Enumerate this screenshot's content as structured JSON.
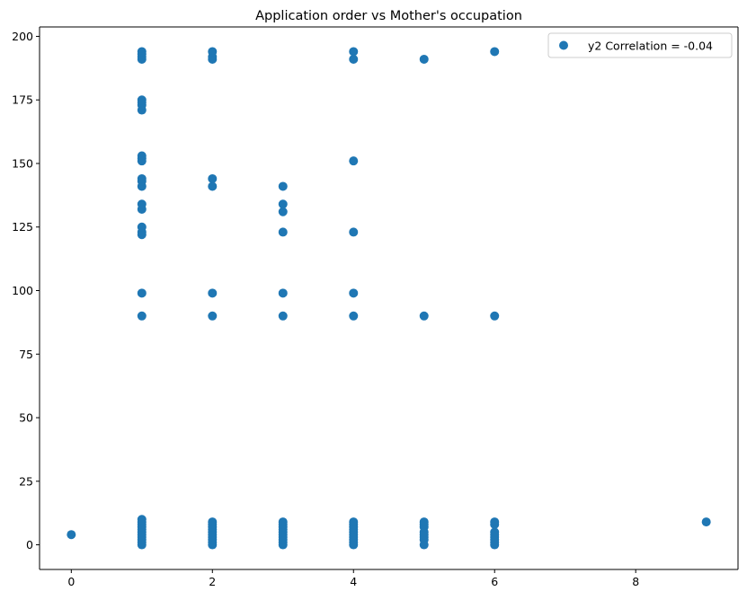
{
  "chart_data": {
    "type": "scatter",
    "title": "Application order vs Mother's occupation",
    "xlabel": "",
    "ylabel": "",
    "xlim": [
      -0.45,
      9.45
    ],
    "ylim": [
      -9.7,
      203.7
    ],
    "xticks": [
      0,
      2,
      4,
      6,
      8
    ],
    "yticks": [
      0,
      25,
      50,
      75,
      100,
      125,
      150,
      175,
      200
    ],
    "grid": false,
    "legend_position": "upper right",
    "series": [
      {
        "name": "y2 Correlation = -0.04",
        "color": "#1f77b4",
        "points": [
          [
            0,
            4
          ],
          [
            1,
            0
          ],
          [
            1,
            1
          ],
          [
            1,
            2
          ],
          [
            1,
            3
          ],
          [
            1,
            4
          ],
          [
            1,
            5
          ],
          [
            1,
            6
          ],
          [
            1,
            7
          ],
          [
            1,
            8
          ],
          [
            1,
            9
          ],
          [
            1,
            10
          ],
          [
            1,
            90
          ],
          [
            1,
            99
          ],
          [
            1,
            122
          ],
          [
            1,
            123
          ],
          [
            1,
            125
          ],
          [
            1,
            132
          ],
          [
            1,
            134
          ],
          [
            1,
            141
          ],
          [
            1,
            143
          ],
          [
            1,
            144
          ],
          [
            1,
            151
          ],
          [
            1,
            152
          ],
          [
            1,
            153
          ],
          [
            1,
            171
          ],
          [
            1,
            173
          ],
          [
            1,
            174
          ],
          [
            1,
            175
          ],
          [
            1,
            191
          ],
          [
            1,
            192
          ],
          [
            1,
            193
          ],
          [
            1,
            194
          ],
          [
            2,
            0
          ],
          [
            2,
            1
          ],
          [
            2,
            2
          ],
          [
            2,
            3
          ],
          [
            2,
            4
          ],
          [
            2,
            5
          ],
          [
            2,
            6
          ],
          [
            2,
            7
          ],
          [
            2,
            8
          ],
          [
            2,
            9
          ],
          [
            2,
            90
          ],
          [
            2,
            99
          ],
          [
            2,
            141
          ],
          [
            2,
            144
          ],
          [
            2,
            191
          ],
          [
            2,
            192
          ],
          [
            2,
            194
          ],
          [
            3,
            0
          ],
          [
            3,
            1
          ],
          [
            3,
            2
          ],
          [
            3,
            3
          ],
          [
            3,
            4
          ],
          [
            3,
            5
          ],
          [
            3,
            6
          ],
          [
            3,
            7
          ],
          [
            3,
            8
          ],
          [
            3,
            9
          ],
          [
            3,
            90
          ],
          [
            3,
            99
          ],
          [
            3,
            123
          ],
          [
            3,
            131
          ],
          [
            3,
            134
          ],
          [
            3,
            141
          ],
          [
            4,
            0
          ],
          [
            4,
            1
          ],
          [
            4,
            2
          ],
          [
            4,
            3
          ],
          [
            4,
            4
          ],
          [
            4,
            5
          ],
          [
            4,
            6
          ],
          [
            4,
            7
          ],
          [
            4,
            8
          ],
          [
            4,
            9
          ],
          [
            4,
            90
          ],
          [
            4,
            99
          ],
          [
            4,
            123
          ],
          [
            4,
            151
          ],
          [
            4,
            191
          ],
          [
            4,
            194
          ],
          [
            5,
            0
          ],
          [
            5,
            2
          ],
          [
            5,
            3
          ],
          [
            5,
            4
          ],
          [
            5,
            5
          ],
          [
            5,
            7
          ],
          [
            5,
            8
          ],
          [
            5,
            9
          ],
          [
            5,
            90
          ],
          [
            5,
            191
          ],
          [
            6,
            0
          ],
          [
            6,
            1
          ],
          [
            6,
            2
          ],
          [
            6,
            3
          ],
          [
            6,
            4
          ],
          [
            6,
            5
          ],
          [
            6,
            8
          ],
          [
            6,
            9
          ],
          [
            6,
            90
          ],
          [
            6,
            194
          ],
          [
            9,
            9
          ]
        ]
      }
    ]
  }
}
